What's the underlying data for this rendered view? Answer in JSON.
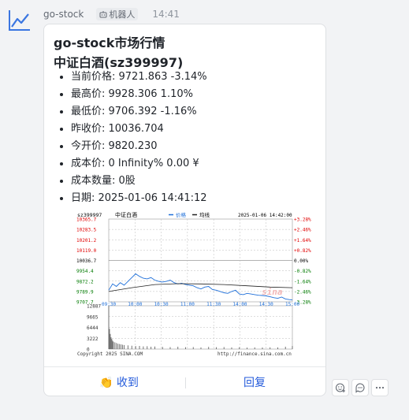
{
  "message": {
    "sender": "go-stock",
    "bot_badge": "机器人",
    "time": "14:41",
    "avatar_icon": "line-chart-icon"
  },
  "card": {
    "title": "go-stock市场行情",
    "subtitle": "中证白酒(sz399997)",
    "items": [
      {
        "label": "当前价格: 9721.863 -3.14%"
      },
      {
        "label": "最高价: 9928.306 1.10%"
      },
      {
        "label": "最低价: 9706.392 -1.16%"
      },
      {
        "label": "昨收价: 10036.704"
      },
      {
        "label": "今开价: 9820.230"
      },
      {
        "label": "成本价: 0 Infinity% 0.00 ¥"
      },
      {
        "label": "成本数量: 0股"
      },
      {
        "label": "日期: 2025-01-06 14:41:12"
      }
    ],
    "buttons": {
      "collect": "👏 收到",
      "reply": "回复"
    }
  },
  "chart_data": {
    "type": "line",
    "code": "sz399997",
    "name": "中证白酒",
    "legend": [
      "价格",
      "均线"
    ],
    "datetime": "2025-01-06 14:42:00",
    "x_ticks": [
      "09:30",
      "10:00",
      "10:30",
      "11:00",
      "11:30",
      "14:00",
      "14:30",
      "15:00"
    ],
    "y_ticks_left": [
      "10365.7",
      "10283.5",
      "10201.2",
      "10119.0",
      "10036.7",
      "9954.4",
      "9872.2",
      "9789.9",
      "9707.7"
    ],
    "y_ticks_right": [
      "+3.28%",
      "+2.46%",
      "+1.64%",
      "+0.82%",
      "0.00%",
      "-0.82%",
      "-1.64%",
      "-2.46%",
      "-3.28%"
    ],
    "ylim": [
      9707.7,
      10365.7
    ],
    "volume_ticks": [
      "12887",
      "9665",
      "6444",
      "3222",
      "0"
    ],
    "copyright": "Copyright 2025 SINA.COM",
    "source": "http://finance.sina.com.cn",
    "watermark": "sina",
    "series": [
      {
        "name": "价格",
        "color": "#1e6fd9",
        "x": [
          0,
          5,
          10,
          15,
          20,
          25,
          30,
          35,
          40,
          45,
          50,
          55,
          60,
          65,
          70,
          75,
          80,
          85,
          90,
          95,
          100,
          105,
          110,
          115,
          120,
          125,
          130,
          135,
          140,
          145,
          150,
          155,
          160,
          165,
          170,
          175,
          180,
          185,
          190,
          195,
          200,
          205,
          210,
          215,
          220,
          225,
          230,
          235,
          239
        ],
        "values": [
          9800,
          9850,
          9830,
          9860,
          9840,
          9870,
          9900,
          9930,
          9910,
          9895,
          9890,
          9900,
          9880,
          9870,
          9865,
          9870,
          9880,
          9860,
          9850,
          9855,
          9845,
          9840,
          9835,
          9820,
          9810,
          9825,
          9830,
          9805,
          9800,
          9790,
          9780,
          9775,
          9790,
          9800,
          9770,
          9765,
          9775,
          9770,
          9765,
          9760,
          9758,
          9755,
          9748,
          9740,
          9735,
          9745,
          9730,
          9725,
          9722
        ]
      },
      {
        "name": "均线",
        "color": "#222222",
        "x": [
          0,
          30,
          60,
          90,
          120,
          150,
          180,
          210,
          239
        ],
        "values": [
          9790,
          9820,
          9845,
          9852,
          9850,
          9845,
          9835,
          9825,
          9820
        ]
      }
    ],
    "volume": {
      "x": [
        0,
        1,
        2,
        3,
        4,
        5,
        6,
        8,
        10,
        12,
        14,
        16,
        18,
        20,
        25,
        30,
        35,
        40,
        45,
        50,
        55,
        60,
        70,
        80,
        90,
        100,
        110,
        120,
        130,
        140,
        150,
        160,
        170,
        180,
        190,
        200,
        210,
        220,
        230,
        239
      ],
      "values": [
        12887,
        6000,
        4500,
        3500,
        3000,
        2500,
        2200,
        2000,
        1800,
        1600,
        1500,
        1400,
        1300,
        1200,
        1100,
        1000,
        900,
        950,
        800,
        850,
        700,
        750,
        650,
        600,
        700,
        550,
        600,
        500,
        650,
        550,
        600,
        500,
        550,
        450,
        500,
        480,
        520,
        500,
        700,
        900
      ]
    }
  }
}
